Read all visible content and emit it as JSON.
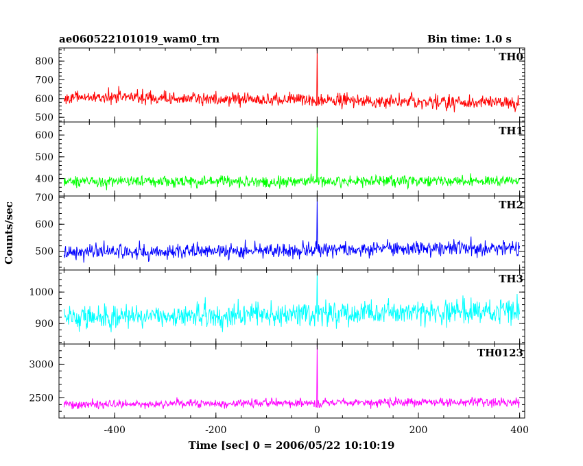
{
  "chart_data": {
    "type": "line",
    "title": "ae060522101019_wam0_trn",
    "subtitle": "Bin time: 1.0 s",
    "xlabel": "Time [sec] 0 = 2006/05/22 10:10:19",
    "ylabel": "Counts/sec",
    "xlim": [
      -510,
      410
    ],
    "x_ticks": [
      -400,
      -200,
      0,
      200,
      400
    ],
    "x_start": -500,
    "x_end": 400,
    "x_step": 1,
    "grid": false,
    "panels": [
      {
        "name": "TH0",
        "color": "#ff0000",
        "ylim": [
          475,
          870
        ],
        "y_ticks": [
          500,
          600,
          700,
          800
        ],
        "baseline": 610,
        "trend": -35,
        "noise": 25,
        "spike": {
          "x": 0,
          "value": 870
        }
      },
      {
        "name": "TH1",
        "color": "#00ff00",
        "ylim": [
          320,
          660
        ],
        "y_ticks": [
          400,
          500,
          600
        ],
        "baseline": 385,
        "trend": 5,
        "noise": 18,
        "spike": {
          "x": 0,
          "value": 655
        }
      },
      {
        "name": "TH2",
        "color": "#0000ff",
        "ylim": [
          430,
          705
        ],
        "y_ticks": [
          500,
          600,
          700
        ],
        "baseline": 495,
        "trend": 18,
        "noise": 20,
        "spike": {
          "x": 0,
          "value": 700
        }
      },
      {
        "name": "TH3",
        "color": "#00ffff",
        "ylim": [
          835,
          1070
        ],
        "y_ticks": [
          900,
          1000
        ],
        "baseline": 920,
        "trend": 20,
        "noise": 28,
        "spike": {
          "x": 0,
          "value": 1065
        }
      },
      {
        "name": "TH0123",
        "color": "#ff00ff",
        "ylim": [
          2200,
          3300
        ],
        "y_ticks": [
          2500,
          3000
        ],
        "baseline": 2400,
        "trend": 40,
        "noise": 45,
        "spike": {
          "x": 0,
          "value": 3290
        }
      }
    ]
  }
}
